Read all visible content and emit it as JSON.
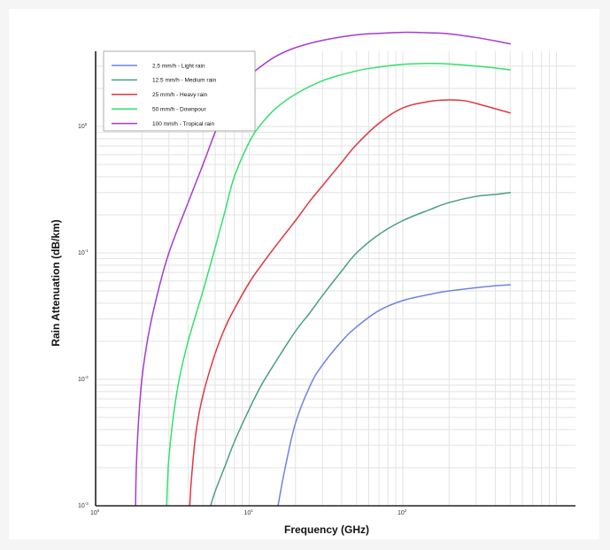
{
  "chart_data": {
    "type": "line",
    "title": "",
    "xlabel": "Frequency (GHz)",
    "ylabel": "Rain Attenuation (dB/km)",
    "x_scale": "log",
    "y_scale": "log",
    "xlim": [
      1,
      1000
    ],
    "ylim": [
      0.001,
      10
    ],
    "grid": true,
    "legend_position": "top-left",
    "x_ticks": [
      {
        "value": 1,
        "base": "10",
        "exp": "0"
      },
      {
        "value": 10,
        "base": "10",
        "exp": "1"
      },
      {
        "value": 100,
        "base": "10",
        "exp": "2"
      }
    ],
    "y_ticks": [
      {
        "value": 0.001,
        "base": "10",
        "exp": "-3"
      },
      {
        "value": 0.01,
        "base": "10",
        "exp": "-2"
      },
      {
        "value": 0.1,
        "base": "10",
        "exp": "-1"
      },
      {
        "value": 1,
        "base": "10",
        "exp": "0"
      }
    ],
    "series": [
      {
        "name": "2.5 mm/h - Light rain",
        "color": "#6f83e0",
        "x": [
          15.4,
          17,
          20,
          25,
          30,
          40,
          50,
          70,
          100,
          150,
          200,
          300,
          400,
          500
        ],
        "y": [
          0.001,
          0.0019,
          0.0045,
          0.009,
          0.013,
          0.02,
          0.026,
          0.035,
          0.042,
          0.047,
          0.05,
          0.053,
          0.055,
          0.056
        ]
      },
      {
        "name": "12.5 mm/h - Medium rain",
        "color": "#4a9e86",
        "x": [
          5.6,
          6,
          7,
          8,
          10,
          12,
          15,
          20,
          25,
          30,
          40,
          50,
          70,
          100,
          150,
          200,
          300,
          400,
          500
        ],
        "y": [
          0.001,
          0.0013,
          0.0021,
          0.0032,
          0.0058,
          0.009,
          0.014,
          0.024,
          0.034,
          0.046,
          0.072,
          0.1,
          0.14,
          0.18,
          0.22,
          0.25,
          0.28,
          0.29,
          0.3
        ]
      },
      {
        "name": "25 mm/h - Heavy rain",
        "color": "#e0353f",
        "x": [
          4.1,
          4.2,
          4.5,
          5,
          6,
          7,
          8,
          10,
          12,
          15,
          20,
          25,
          30,
          40,
          50,
          70,
          100,
          150,
          200,
          250,
          300,
          400,
          500
        ],
        "y": [
          0.001,
          0.0016,
          0.0038,
          0.0075,
          0.016,
          0.026,
          0.036,
          0.058,
          0.08,
          0.115,
          0.18,
          0.26,
          0.34,
          0.52,
          0.72,
          1.06,
          1.4,
          1.58,
          1.62,
          1.6,
          1.52,
          1.38,
          1.28
        ]
      },
      {
        "name": "50 mm/h - Downpour",
        "color": "#33e06e",
        "x": [
          2.9,
          2.95,
          3,
          3.2,
          3.5,
          4,
          5,
          6,
          7,
          8,
          10,
          12,
          15,
          20,
          30,
          50,
          70,
          100,
          150,
          200,
          300,
          400,
          500
        ],
        "y": [
          0.001,
          0.0017,
          0.0024,
          0.005,
          0.01,
          0.02,
          0.05,
          0.11,
          0.22,
          0.4,
          0.75,
          1.05,
          1.4,
          1.8,
          2.3,
          2.75,
          2.95,
          3.1,
          3.15,
          3.12,
          3.0,
          2.9,
          2.8
        ]
      },
      {
        "name": "100 mm/h - Tropical rain",
        "color": "#a53bd2",
        "x": [
          1.82,
          1.84,
          1.9,
          2,
          2.2,
          2.5,
          3,
          4,
          5,
          6,
          7,
          8,
          10,
          12,
          15,
          20,
          30,
          50,
          70,
          100,
          150,
          200,
          300,
          400,
          500
        ],
        "y": [
          0.001,
          0.002,
          0.0045,
          0.01,
          0.022,
          0.045,
          0.1,
          0.25,
          0.5,
          0.9,
          1.4,
          1.85,
          2.5,
          3.0,
          3.6,
          4.2,
          4.8,
          5.3,
          5.45,
          5.55,
          5.5,
          5.4,
          5.05,
          4.75,
          4.5
        ]
      }
    ]
  }
}
